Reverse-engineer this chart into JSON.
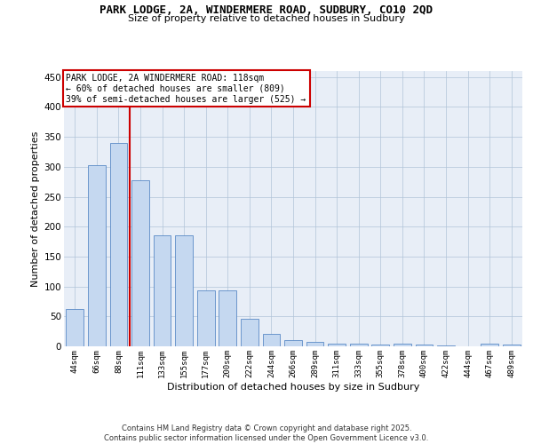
{
  "title_line1": "PARK LODGE, 2A, WINDERMERE ROAD, SUDBURY, CO10 2QD",
  "title_line2": "Size of property relative to detached houses in Sudbury",
  "xlabel": "Distribution of detached houses by size in Sudbury",
  "ylabel": "Number of detached properties",
  "categories": [
    "44sqm",
    "66sqm",
    "88sqm",
    "111sqm",
    "133sqm",
    "155sqm",
    "177sqm",
    "200sqm",
    "222sqm",
    "244sqm",
    "266sqm",
    "289sqm",
    "311sqm",
    "333sqm",
    "355sqm",
    "378sqm",
    "400sqm",
    "422sqm",
    "444sqm",
    "467sqm",
    "489sqm"
  ],
  "values": [
    63,
    302,
    340,
    278,
    185,
    185,
    93,
    93,
    46,
    21,
    11,
    7,
    5,
    5,
    3,
    5,
    3,
    1,
    0,
    4,
    3
  ],
  "bar_color": "#c5d8f0",
  "bar_edge_color": "#5a8ac6",
  "vline_color": "#cc0000",
  "vline_x": 2.5,
  "annotation_text": "PARK LODGE, 2A WINDERMERE ROAD: 118sqm\n← 60% of detached houses are smaller (809)\n39% of semi-detached houses are larger (525) →",
  "annotation_box_facecolor": "#ffffff",
  "annotation_border_color": "#cc0000",
  "ylim": [
    0,
    460
  ],
  "yticks": [
    0,
    50,
    100,
    150,
    200,
    250,
    300,
    350,
    400,
    450
  ],
  "bg_color": "#e8eef7",
  "grid_color": "#b0c4d8",
  "footer": "Contains HM Land Registry data © Crown copyright and database right 2025.\nContains public sector information licensed under the Open Government Licence v3.0."
}
